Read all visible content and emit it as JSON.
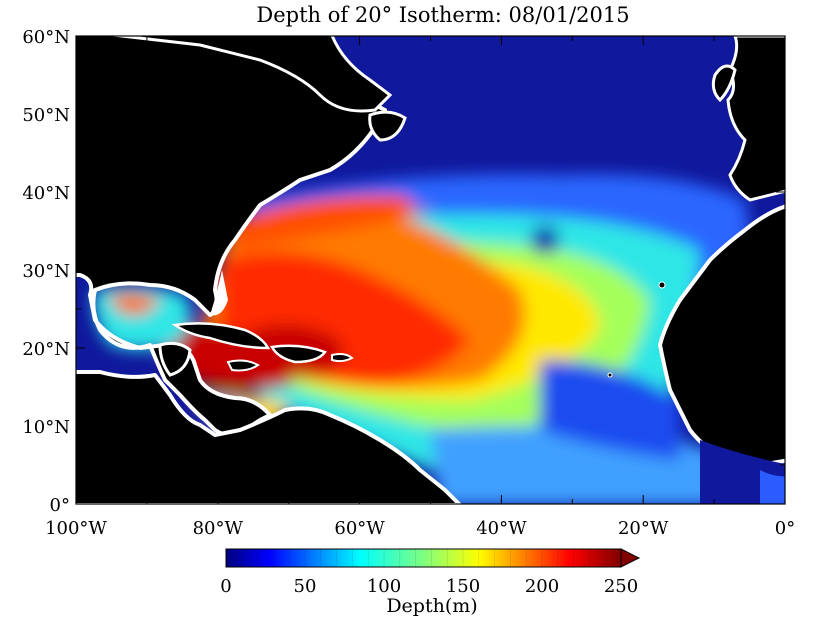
{
  "title": "Depth of 20° Isotherm: 08/01/2015",
  "lat_ticks": [
    "0°",
    "10°N",
    "20°N",
    "30°N",
    "40°N",
    "50°N",
    "60°N"
  ],
  "lon_ticks": [
    "100°W",
    "80°W",
    "60°W",
    "40°W",
    "20°W",
    "0°"
  ],
  "lon_range": [
    -100,
    0
  ],
  "lat_range": [
    0,
    60
  ],
  "colorbar": {
    "ticks": [
      "0",
      "50",
      "100",
      "150",
      "200",
      "250"
    ],
    "range": [
      0,
      250
    ],
    "label": "Depth(m)",
    "colormap": "jet",
    "extend": "max"
  },
  "colors": {
    "land": "#000000",
    "coast_gap": "#ffffff",
    "deep_blue": "#10189c",
    "max_red": "#800000"
  }
}
